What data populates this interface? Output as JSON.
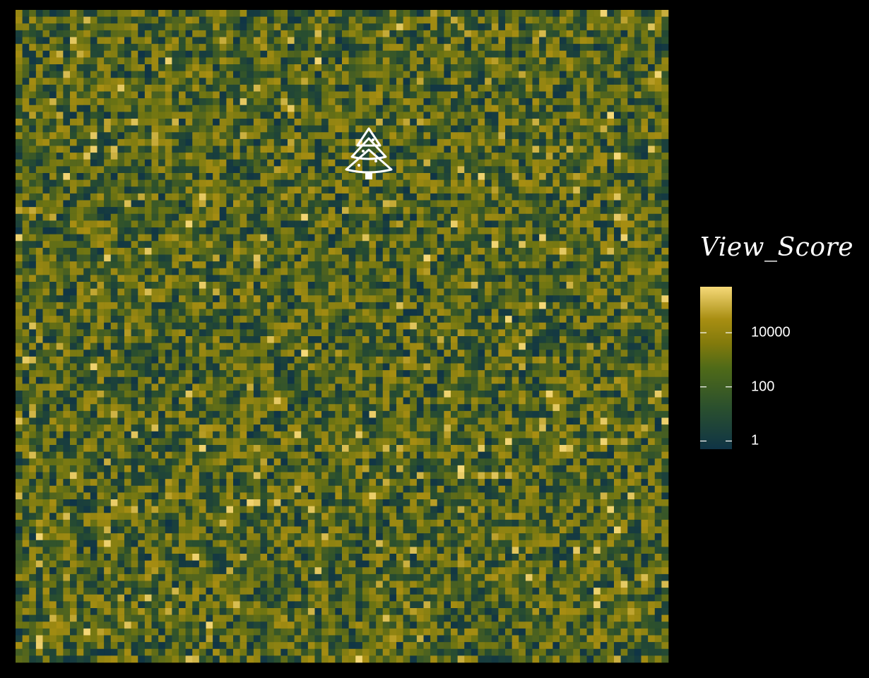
{
  "chart_data": {
    "type": "heatmap",
    "title": "",
    "xlabel": "",
    "ylabel": "",
    "grid": false,
    "rows": 96,
    "cols": 96,
    "value_distribution": "log-uniform random noise; most cells between 1 and 10000",
    "bright_cells_note": "scattered cells near the top of the scale",
    "icon": "christmas-tree-icon",
    "legend": {
      "title": "View_Score",
      "scale": "log10",
      "range": [
        0.5,
        500000
      ],
      "ticks": [
        {
          "value": 1,
          "label": "1"
        },
        {
          "value": 100,
          "label": "100"
        },
        {
          "value": 10000,
          "label": "10000"
        }
      ],
      "position": "right"
    },
    "colors": {
      "background": "#000000",
      "scale": [
        "#0f3446",
        "#2a4f2e",
        "#6e7412",
        "#a88e12",
        "#f6d978"
      ]
    }
  }
}
